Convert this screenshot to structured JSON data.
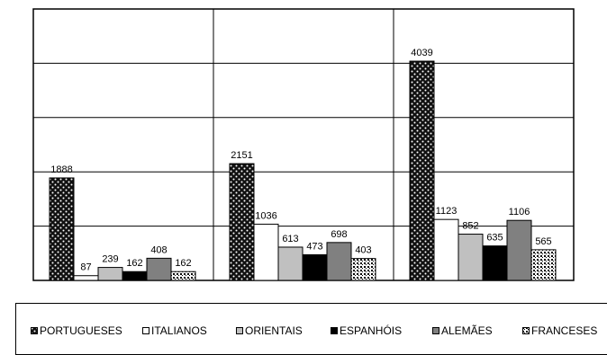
{
  "chart_data": {
    "type": "bar",
    "categories": [
      "",
      "",
      ""
    ],
    "series": [
      {
        "name": "PORTUGUESES",
        "values": [
          1888,
          2151,
          4039
        ],
        "pattern": "dots-dark",
        "color": "#000000"
      },
      {
        "name": "ITALIANOS",
        "values": [
          87,
          1036,
          1123
        ],
        "pattern": "solid",
        "color": "#ffffff"
      },
      {
        "name": "ORIENTAIS",
        "values": [
          239,
          613,
          852
        ],
        "pattern": "solid",
        "color": "#c0c0c0"
      },
      {
        "name": "ESPANHÓIS",
        "values": [
          162,
          473,
          635
        ],
        "pattern": "solid",
        "color": "#000000"
      },
      {
        "name": "ALEMÃES",
        "values": [
          408,
          698,
          1106
        ],
        "pattern": "solid",
        "color": "#808080"
      },
      {
        "name": "FRANCESES",
        "values": [
          162,
          403,
          565
        ],
        "pattern": "dots-light",
        "color": "#000000"
      }
    ],
    "ylim": [
      0,
      5000
    ],
    "y_gridlines": [
      1000,
      2000,
      3000,
      4000
    ],
    "grid": true,
    "legend_position": "bottom",
    "title": "",
    "xlabel": "",
    "ylabel": ""
  }
}
